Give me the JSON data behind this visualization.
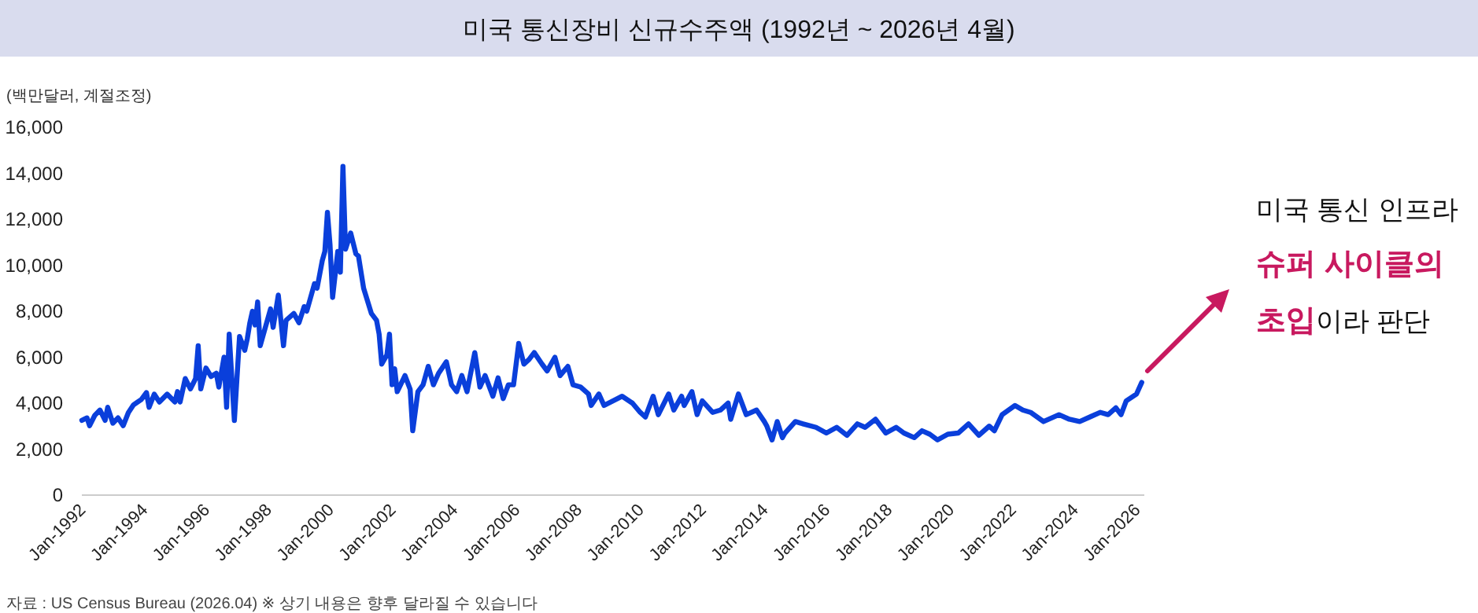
{
  "chart_data": {
    "type": "line",
    "title": "미국 통신장비 신규수주액 (1992년 ~ 2026년 4월)",
    "ylabel": "(백만달러, 계절조정)",
    "annotations": [
      "미국 통신 인프라",
      "슈퍼 사이클의",
      "초입",
      "이라 판단",
      "자료 : US Census Bureau (2026.04) ※ 상기 내용은 향후 달라질 수 있습니다"
    ],
    "xlim": [
      "1992-01",
      "2026-04"
    ],
    "ylim": [
      0,
      16000
    ],
    "xticks": [
      {
        "value": "1992-01",
        "label": "Jan-1992"
      },
      {
        "value": "1994-01",
        "label": "Jan-1994"
      },
      {
        "value": "1996-01",
        "label": "Jan-1996"
      },
      {
        "value": "1998-01",
        "label": "Jan-1998"
      },
      {
        "value": "2000-01",
        "label": "Jan-2000"
      },
      {
        "value": "2002-01",
        "label": "Jan-2002"
      },
      {
        "value": "2004-01",
        "label": "Jan-2004"
      },
      {
        "value": "2006-01",
        "label": "Jan-2006"
      },
      {
        "value": "2008-01",
        "label": "Jan-2008"
      },
      {
        "value": "2010-01",
        "label": "Jan-2010"
      },
      {
        "value": "2012-01",
        "label": "Jan-2012"
      },
      {
        "value": "2014-01",
        "label": "Jan-2014"
      },
      {
        "value": "2016-01",
        "label": "Jan-2016"
      },
      {
        "value": "2018-01",
        "label": "Jan-2018"
      },
      {
        "value": "2020-01",
        "label": "Jan-2020"
      },
      {
        "value": "2022-01",
        "label": "Jan-2022"
      },
      {
        "value": "2024-01",
        "label": "Jan-2024"
      },
      {
        "value": "2026-01",
        "label": "Jan-2026"
      }
    ],
    "yticks": [
      0,
      {
        "value": 2000,
        "label": "2,000"
      },
      {
        "value": 4000,
        "label": "4,000"
      },
      {
        "value": 6000,
        "label": "6,000"
      },
      {
        "value": 8000,
        "label": "8,000"
      },
      {
        "value": 10000,
        "label": "10,000"
      },
      {
        "value": 12000,
        "label": "12,000"
      },
      {
        "value": 14000,
        "label": "14,000"
      },
      {
        "value": 16000,
        "label": "16,000"
      }
    ],
    "x": [
      "1992-01",
      "1992-03",
      "1992-04",
      "1992-06",
      "1992-08",
      "1992-10",
      "1992-11",
      "1993-01",
      "1993-03",
      "1993-05",
      "1993-07",
      "1993-09",
      "1993-12",
      "1994-02",
      "1994-03",
      "1994-05",
      "1994-07",
      "1994-10",
      "1995-01",
      "1995-02",
      "1995-03",
      "1995-05",
      "1995-07",
      "1995-09",
      "1995-10",
      "1995-11",
      "1996-01",
      "1996-03",
      "1996-05",
      "1996-06",
      "1996-08",
      "1996-09",
      "1996-10",
      "1996-12",
      "1997-02",
      "1997-04",
      "1997-05",
      "1997-06",
      "1997-07",
      "1997-08",
      "1997-09",
      "1997-10",
      "1997-12",
      "1998-02",
      "1998-03",
      "1998-05",
      "1998-07",
      "1998-08",
      "1998-11",
      "1999-01",
      "1999-03",
      "1999-04",
      "1999-07",
      "1999-08",
      "1999-10",
      "1999-11",
      "1999-12",
      "2000-01",
      "2000-02",
      "2000-04",
      "2000-05",
      "2000-06",
      "2000-07",
      "2000-09",
      "2000-11",
      "2000-12",
      "2001-02",
      "2001-05",
      "2001-07",
      "2001-08",
      "2001-09",
      "2001-11",
      "2001-12",
      "2002-01",
      "2002-02",
      "2002-03",
      "2002-06",
      "2002-08",
      "2002-09",
      "2002-11",
      "2003-01",
      "2003-03",
      "2003-05",
      "2003-07",
      "2003-10",
      "2003-12",
      "2004-02",
      "2004-04",
      "2004-06",
      "2004-09",
      "2004-11",
      "2005-01",
      "2005-04",
      "2005-06",
      "2005-08",
      "2005-10",
      "2005-12",
      "2006-02",
      "2006-04",
      "2006-06",
      "2006-08",
      "2006-11",
      "2007-01",
      "2007-04",
      "2007-06",
      "2007-09",
      "2007-11",
      "2008-02",
      "2008-05",
      "2008-06",
      "2008-09",
      "2008-11",
      "2009-06",
      "2009-10",
      "2010-01",
      "2010-03",
      "2010-06",
      "2010-08",
      "2010-12",
      "2011-02",
      "2011-05",
      "2011-06",
      "2011-09",
      "2011-11",
      "2012-01",
      "2012-05",
      "2012-08",
      "2012-11",
      "2012-12",
      "2013-03",
      "2013-06",
      "2013-10",
      "2014-01",
      "2014-02",
      "2014-04",
      "2014-06",
      "2014-08",
      "2014-09",
      "2015-01",
      "2015-04",
      "2015-09",
      "2016-01",
      "2016-05",
      "2016-09",
      "2017-01",
      "2017-04",
      "2017-08",
      "2017-12",
      "2018-04",
      "2018-07",
      "2018-11",
      "2019-02",
      "2019-05",
      "2019-08",
      "2019-12",
      "2020-04",
      "2020-08",
      "2020-12",
      "2021-04",
      "2021-06",
      "2021-09",
      "2022-02",
      "2022-05",
      "2022-08",
      "2023-01",
      "2023-07",
      "2023-11",
      "2024-03",
      "2024-07",
      "2024-11",
      "2025-02",
      "2025-05",
      "2025-07",
      "2025-09",
      "2026-01",
      "2026-03"
    ],
    "series": [
      {
        "color": "#0a3fdb",
        "values": [
          3250,
          3360,
          3020,
          3470,
          3700,
          3250,
          3820,
          3130,
          3360,
          3020,
          3590,
          3930,
          4160,
          4460,
          3820,
          4390,
          4050,
          4390,
          4050,
          4500,
          4050,
          5070,
          4620,
          5070,
          6500,
          4620,
          5530,
          5160,
          5300,
          4700,
          6000,
          3820,
          7000,
          3250,
          6900,
          6300,
          6800,
          7500,
          8000,
          7400,
          8400,
          6500,
          7300,
          8100,
          7300,
          8700,
          6500,
          7600,
          7900,
          7500,
          8200,
          8000,
          9200,
          9000,
          10200,
          10600,
          12300,
          10900,
          8600,
          10600,
          9700,
          14300,
          10700,
          11400,
          10500,
          10400,
          9000,
          7900,
          7600,
          7000,
          5700,
          6100,
          7000,
          4800,
          5500,
          4500,
          5200,
          4600,
          2800,
          4500,
          4800,
          5600,
          4800,
          5300,
          5800,
          4800,
          4500,
          5200,
          4500,
          6200,
          4700,
          5200,
          4300,
          5100,
          4200,
          4800,
          4800,
          6600,
          5700,
          5900,
          6200,
          5700,
          5400,
          6000,
          5200,
          5600,
          4800,
          4700,
          4400,
          3900,
          4400,
          3900,
          4300,
          4000,
          3600,
          3400,
          4300,
          3500,
          4400,
          3700,
          4300,
          3900,
          4500,
          3500,
          4100,
          3600,
          3700,
          4000,
          3300,
          4400,
          3500,
          3700,
          3200,
          3000,
          2400,
          3200,
          2500,
          2700,
          3200,
          3100,
          2950,
          2700,
          2950,
          2600,
          3100,
          2950,
          3300,
          2700,
          2950,
          2700,
          2500,
          2800,
          2650,
          2400,
          2650,
          2700,
          3100,
          2600,
          3000,
          2800,
          3500,
          3900,
          3700,
          3600,
          3200,
          3500,
          3300,
          3200,
          3400,
          3600,
          3500,
          3800,
          3500,
          4100,
          4400,
          4900
        ]
      }
    ]
  }
}
